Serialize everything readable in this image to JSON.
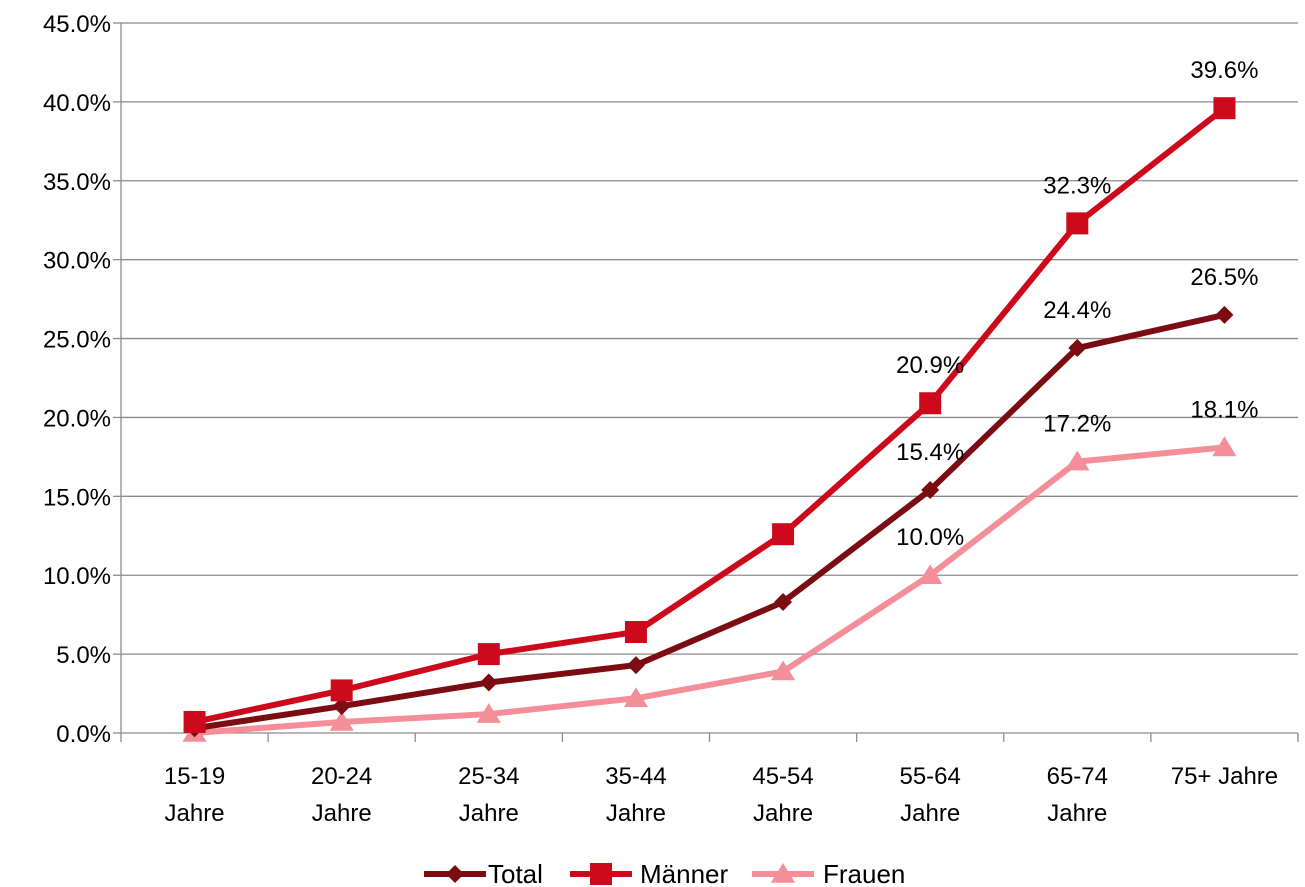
{
  "chart_data": {
    "type": "line",
    "title": "",
    "xlabel": "",
    "ylabel": "",
    "categories": [
      [
        "15-19",
        "Jahre"
      ],
      [
        "20-24",
        "Jahre"
      ],
      [
        "25-34",
        "Jahre"
      ],
      [
        "35-44",
        "Jahre"
      ],
      [
        "45-54",
        "Jahre"
      ],
      [
        "55-64",
        "Jahre"
      ],
      [
        "65-74",
        "Jahre"
      ],
      [
        "75+ Jahre"
      ]
    ],
    "ylim": [
      0,
      45
    ],
    "y_ticks": [
      "0.0%",
      "5.0%",
      "10.0%",
      "15.0%",
      "20.0%",
      "25.0%",
      "30.0%",
      "35.0%",
      "40.0%",
      "45.0%"
    ],
    "grid": "horizontal",
    "legend_position": "bottom",
    "series": [
      {
        "name": "Total",
        "color": "#7B0C12",
        "marker": "diamond",
        "values": [
          0.3,
          1.7,
          3.2,
          4.3,
          8.3,
          15.4,
          24.4,
          26.5
        ],
        "labels": [
          "",
          "",
          "",
          "",
          "",
          "15.4%",
          "24.4%",
          "26.5%"
        ]
      },
      {
        "name": "Männer",
        "color": "#CC0A1B",
        "marker": "square",
        "values": [
          0.7,
          2.7,
          5.0,
          6.4,
          12.6,
          20.9,
          32.3,
          39.6
        ],
        "labels": [
          "",
          "",
          "",
          "",
          "",
          "20.9%",
          "32.3%",
          "39.6%"
        ]
      },
      {
        "name": "Frauen",
        "color": "#F48E98",
        "marker": "triangle",
        "values": [
          0.0,
          0.7,
          1.2,
          2.2,
          3.9,
          10.0,
          17.2,
          18.1
        ],
        "labels": [
          "",
          "",
          "",
          "",
          "",
          "10.0%",
          "17.2%",
          "18.1%"
        ]
      }
    ]
  }
}
